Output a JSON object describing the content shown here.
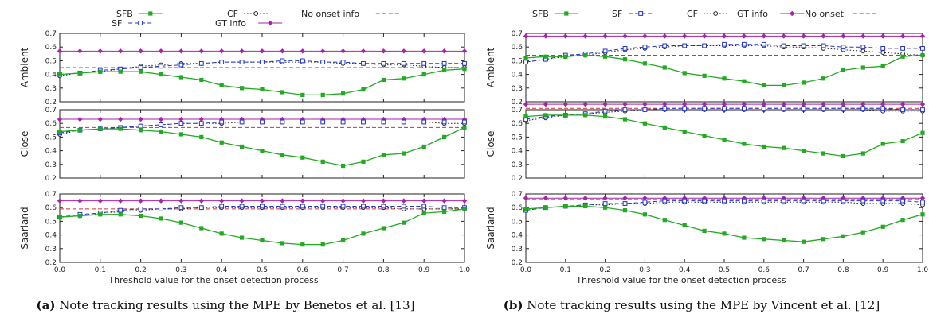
{
  "figures": [
    {
      "caption_label": "(a)",
      "caption_text": " Note tracking results using the MPE by Benetos et al. [13]",
      "xlabel": "Threshold value for the onset detection process",
      "legend": [
        {
          "key": "SFB",
          "label": "SFB"
        },
        {
          "key": "SF",
          "label": "SF"
        },
        {
          "key": "CF",
          "label": "CF"
        },
        {
          "key": "GT",
          "label": "GT info"
        },
        {
          "key": "NO",
          "label": "No onset info"
        }
      ]
    },
    {
      "caption_label": "(b)",
      "caption_text": " Note tracking results using the MPE by Vincent et al. [12]",
      "xlabel": "Threshold value for the onset detection process",
      "legend": [
        {
          "key": "SFB",
          "label": "SFB"
        },
        {
          "key": "SF",
          "label": "SF"
        },
        {
          "key": "CF",
          "label": "CF"
        },
        {
          "key": "GT",
          "label": "GT info"
        },
        {
          "key": "NO",
          "label": "No onset"
        }
      ]
    }
  ],
  "styles": {
    "SFB": {
      "color": "#22aa22",
      "marker": "square-filled",
      "dash": "solid"
    },
    "SF": {
      "color": "#2233cc",
      "marker": "square-open",
      "dash": "dash"
    },
    "CF": {
      "color": "#222222",
      "marker": "circle-open",
      "dash": "dot"
    },
    "GT": {
      "color": "#aa22aa",
      "marker": "diamond-filled",
      "dash": "solid"
    },
    "NO": {
      "color": "#cc3333",
      "marker": "none",
      "dash": "dash"
    }
  },
  "chart_data": [
    {
      "type": "line",
      "panel": "a",
      "ylabel": "Ambient",
      "xlim": [
        0,
        1
      ],
      "ylim": [
        0.2,
        0.7
      ],
      "x": [
        0,
        0.05,
        0.1,
        0.15,
        0.2,
        0.25,
        0.3,
        0.35,
        0.4,
        0.45,
        0.5,
        0.55,
        0.6,
        0.65,
        0.7,
        0.75,
        0.8,
        0.85,
        0.9,
        0.95,
        1.0
      ],
      "series": [
        {
          "name": "SFB",
          "values": [
            0.4,
            0.41,
            0.42,
            0.42,
            0.42,
            0.4,
            0.38,
            0.36,
            0.32,
            0.3,
            0.29,
            0.27,
            0.25,
            0.25,
            0.26,
            0.29,
            0.36,
            0.37,
            0.4,
            0.43,
            0.44
          ]
        },
        {
          "name": "SF",
          "values": [
            0.4,
            0.41,
            0.43,
            0.44,
            0.45,
            0.46,
            0.47,
            0.48,
            0.49,
            0.49,
            0.49,
            0.5,
            0.5,
            0.49,
            0.49,
            0.48,
            0.48,
            0.48,
            0.48,
            0.48,
            0.48
          ]
        },
        {
          "name": "CF",
          "values": [
            0.39,
            0.41,
            0.42,
            0.44,
            0.46,
            0.47,
            0.48,
            0.48,
            0.49,
            0.49,
            0.49,
            0.49,
            0.49,
            0.49,
            0.48,
            0.48,
            0.47,
            0.47,
            0.46,
            0.45,
            0.45
          ]
        },
        {
          "name": "GT info",
          "values": [
            0.57,
            0.57,
            0.57,
            0.57,
            0.57,
            0.57,
            0.57,
            0.57,
            0.57,
            0.57,
            0.57,
            0.57,
            0.57,
            0.57,
            0.57,
            0.57,
            0.57,
            0.57,
            0.57,
            0.57,
            0.57
          ]
        },
        {
          "name": "No onset info",
          "values": [
            0.45,
            0.45,
            0.45,
            0.45,
            0.45,
            0.45,
            0.45,
            0.45,
            0.45,
            0.45,
            0.45,
            0.45,
            0.45,
            0.45,
            0.45,
            0.45,
            0.45,
            0.45,
            0.45,
            0.45,
            0.45
          ]
        }
      ]
    },
    {
      "type": "line",
      "panel": "a",
      "ylabel": "Close",
      "xlim": [
        0,
        1
      ],
      "ylim": [
        0.2,
        0.7
      ],
      "x": [
        0,
        0.05,
        0.1,
        0.15,
        0.2,
        0.25,
        0.3,
        0.35,
        0.4,
        0.45,
        0.5,
        0.55,
        0.6,
        0.65,
        0.7,
        0.75,
        0.8,
        0.85,
        0.9,
        0.95,
        1.0
      ],
      "series": [
        {
          "name": "SFB",
          "values": [
            0.54,
            0.55,
            0.56,
            0.56,
            0.55,
            0.54,
            0.52,
            0.5,
            0.46,
            0.43,
            0.4,
            0.37,
            0.35,
            0.32,
            0.29,
            0.32,
            0.37,
            0.38,
            0.43,
            0.5,
            0.57
          ]
        },
        {
          "name": "SF",
          "values": [
            0.53,
            0.55,
            0.56,
            0.57,
            0.58,
            0.59,
            0.6,
            0.6,
            0.61,
            0.61,
            0.61,
            0.61,
            0.61,
            0.61,
            0.61,
            0.61,
            0.61,
            0.61,
            0.61,
            0.61,
            0.61
          ]
        },
        {
          "name": "CF",
          "values": [
            0.52,
            0.55,
            0.56,
            0.57,
            0.58,
            0.59,
            0.6,
            0.6,
            0.6,
            0.61,
            0.61,
            0.61,
            0.61,
            0.61,
            0.61,
            0.61,
            0.61,
            0.61,
            0.61,
            0.6,
            0.6
          ]
        },
        {
          "name": "GT info",
          "values": [
            0.63,
            0.63,
            0.63,
            0.63,
            0.63,
            0.63,
            0.63,
            0.63,
            0.63,
            0.63,
            0.63,
            0.63,
            0.63,
            0.63,
            0.63,
            0.63,
            0.63,
            0.63,
            0.63,
            0.63,
            0.63
          ]
        },
        {
          "name": "No onset info",
          "values": [
            0.57,
            0.57,
            0.57,
            0.57,
            0.57,
            0.57,
            0.57,
            0.57,
            0.57,
            0.57,
            0.57,
            0.57,
            0.57,
            0.57,
            0.57,
            0.57,
            0.57,
            0.57,
            0.57,
            0.57,
            0.57
          ]
        }
      ]
    },
    {
      "type": "line",
      "panel": "a",
      "ylabel": "Saarland",
      "xlim": [
        0,
        1
      ],
      "ylim": [
        0.2,
        0.7
      ],
      "x": [
        0,
        0.05,
        0.1,
        0.15,
        0.2,
        0.25,
        0.3,
        0.35,
        0.4,
        0.45,
        0.5,
        0.55,
        0.6,
        0.65,
        0.7,
        0.75,
        0.8,
        0.85,
        0.9,
        0.95,
        1.0
      ],
      "series": [
        {
          "name": "SFB",
          "values": [
            0.53,
            0.54,
            0.55,
            0.55,
            0.54,
            0.52,
            0.49,
            0.45,
            0.41,
            0.38,
            0.36,
            0.34,
            0.33,
            0.33,
            0.36,
            0.41,
            0.45,
            0.49,
            0.56,
            0.57,
            0.59
          ]
        },
        {
          "name": "SF",
          "values": [
            0.53,
            0.55,
            0.56,
            0.58,
            0.59,
            0.59,
            0.6,
            0.6,
            0.61,
            0.61,
            0.61,
            0.61,
            0.61,
            0.61,
            0.61,
            0.61,
            0.61,
            0.61,
            0.61,
            0.6,
            0.6
          ]
        },
        {
          "name": "CF",
          "values": [
            0.53,
            0.54,
            0.56,
            0.57,
            0.58,
            0.59,
            0.59,
            0.6,
            0.6,
            0.6,
            0.6,
            0.6,
            0.6,
            0.6,
            0.6,
            0.6,
            0.6,
            0.59,
            0.59,
            0.59,
            0.59
          ]
        },
        {
          "name": "GT info",
          "values": [
            0.65,
            0.65,
            0.65,
            0.65,
            0.65,
            0.65,
            0.65,
            0.65,
            0.65,
            0.65,
            0.65,
            0.65,
            0.65,
            0.65,
            0.65,
            0.65,
            0.65,
            0.65,
            0.65,
            0.65,
            0.65
          ]
        },
        {
          "name": "No onset info",
          "values": [
            0.59,
            0.59,
            0.59,
            0.59,
            0.59,
            0.59,
            0.59,
            0.59,
            0.59,
            0.59,
            0.59,
            0.59,
            0.59,
            0.59,
            0.59,
            0.59,
            0.59,
            0.59,
            0.59,
            0.59,
            0.59
          ]
        }
      ]
    },
    {
      "type": "line",
      "panel": "b",
      "ylabel": "Ambient",
      "xlim": [
        0,
        1
      ],
      "ylim": [
        0.2,
        0.7
      ],
      "x": [
        0,
        0.05,
        0.1,
        0.15,
        0.2,
        0.25,
        0.3,
        0.35,
        0.4,
        0.45,
        0.5,
        0.55,
        0.6,
        0.65,
        0.7,
        0.75,
        0.8,
        0.85,
        0.9,
        0.95,
        1.0
      ],
      "series": [
        {
          "name": "SFB",
          "values": [
            0.52,
            0.53,
            0.53,
            0.54,
            0.53,
            0.51,
            0.48,
            0.45,
            0.41,
            0.39,
            0.37,
            0.35,
            0.32,
            0.32,
            0.34,
            0.37,
            0.43,
            0.45,
            0.46,
            0.53,
            0.54
          ]
        },
        {
          "name": "SF",
          "values": [
            0.49,
            0.51,
            0.54,
            0.55,
            0.57,
            0.59,
            0.6,
            0.61,
            0.61,
            0.61,
            0.62,
            0.62,
            0.62,
            0.61,
            0.61,
            0.61,
            0.6,
            0.6,
            0.59,
            0.59,
            0.59
          ]
        },
        {
          "name": "CF",
          "values": [
            0.49,
            0.51,
            0.53,
            0.54,
            0.56,
            0.58,
            0.59,
            0.6,
            0.61,
            0.61,
            0.61,
            0.61,
            0.61,
            0.6,
            0.6,
            0.59,
            0.58,
            0.57,
            0.56,
            0.55,
            0.54
          ]
        },
        {
          "name": "GT info",
          "values": [
            0.68,
            0.68,
            0.68,
            0.68,
            0.68,
            0.68,
            0.68,
            0.68,
            0.68,
            0.68,
            0.68,
            0.68,
            0.68,
            0.68,
            0.68,
            0.68,
            0.68,
            0.68,
            0.68,
            0.68,
            0.68
          ]
        },
        {
          "name": "No onset",
          "values": [
            0.54,
            0.54,
            0.54,
            0.54,
            0.54,
            0.54,
            0.54,
            0.54,
            0.54,
            0.54,
            0.54,
            0.54,
            0.54,
            0.54,
            0.54,
            0.54,
            0.54,
            0.54,
            0.54,
            0.54,
            0.54
          ]
        }
      ]
    },
    {
      "type": "line",
      "panel": "b",
      "ylabel": "Close",
      "xlim": [
        0,
        1
      ],
      "ylim": [
        0.2,
        0.7
      ],
      "x": [
        0,
        0.05,
        0.1,
        0.15,
        0.2,
        0.25,
        0.3,
        0.35,
        0.4,
        0.45,
        0.5,
        0.55,
        0.6,
        0.65,
        0.7,
        0.75,
        0.8,
        0.85,
        0.9,
        0.95,
        1.0
      ],
      "series": [
        {
          "name": "SFB",
          "values": [
            0.65,
            0.66,
            0.66,
            0.66,
            0.65,
            0.63,
            0.6,
            0.57,
            0.54,
            0.51,
            0.48,
            0.45,
            0.43,
            0.42,
            0.4,
            0.38,
            0.36,
            0.38,
            0.45,
            0.47,
            0.53
          ]
        },
        {
          "name": "SF",
          "values": [
            0.63,
            0.65,
            0.66,
            0.67,
            0.69,
            0.7,
            0.7,
            0.71,
            0.71,
            0.71,
            0.71,
            0.71,
            0.71,
            0.71,
            0.71,
            0.71,
            0.71,
            0.71,
            0.71,
            0.7,
            0.7
          ]
        },
        {
          "name": "CF",
          "values": [
            0.62,
            0.64,
            0.66,
            0.67,
            0.68,
            0.69,
            0.7,
            0.7,
            0.7,
            0.7,
            0.7,
            0.7,
            0.7,
            0.7,
            0.7,
            0.7,
            0.7,
            0.7,
            0.69,
            0.69,
            0.69
          ]
        },
        {
          "name": "GT info",
          "values": [
            0.74,
            0.74,
            0.74,
            0.74,
            0.74,
            0.74,
            0.74,
            0.74,
            0.74,
            0.74,
            0.74,
            0.74,
            0.74,
            0.74,
            0.74,
            0.74,
            0.74,
            0.74,
            0.74,
            0.74,
            0.74
          ]
        },
        {
          "name": "No onset",
          "values": [
            0.71,
            0.71,
            0.71,
            0.71,
            0.71,
            0.71,
            0.71,
            0.71,
            0.71,
            0.71,
            0.71,
            0.71,
            0.71,
            0.71,
            0.71,
            0.71,
            0.71,
            0.71,
            0.71,
            0.71,
            0.71
          ]
        }
      ]
    },
    {
      "type": "line",
      "panel": "b",
      "ylabel": "Saarland",
      "xlim": [
        0,
        1
      ],
      "ylim": [
        0.2,
        0.7
      ],
      "x": [
        0,
        0.05,
        0.1,
        0.15,
        0.2,
        0.25,
        0.3,
        0.35,
        0.4,
        0.45,
        0.5,
        0.55,
        0.6,
        0.65,
        0.7,
        0.75,
        0.8,
        0.85,
        0.9,
        0.95,
        1.0
      ],
      "series": [
        {
          "name": "SFB",
          "values": [
            0.59,
            0.6,
            0.61,
            0.61,
            0.6,
            0.58,
            0.55,
            0.51,
            0.47,
            0.43,
            0.41,
            0.38,
            0.37,
            0.36,
            0.35,
            0.37,
            0.39,
            0.42,
            0.46,
            0.51,
            0.55
          ]
        },
        {
          "name": "SF",
          "values": [
            0.58,
            0.6,
            0.61,
            0.62,
            0.63,
            0.63,
            0.64,
            0.65,
            0.65,
            0.65,
            0.65,
            0.65,
            0.65,
            0.65,
            0.65,
            0.65,
            0.65,
            0.65,
            0.65,
            0.65,
            0.64
          ]
        },
        {
          "name": "CF",
          "values": [
            0.58,
            0.6,
            0.61,
            0.62,
            0.62,
            0.63,
            0.63,
            0.64,
            0.64,
            0.64,
            0.64,
            0.64,
            0.64,
            0.64,
            0.64,
            0.64,
            0.64,
            0.63,
            0.63,
            0.63,
            0.62
          ]
        },
        {
          "name": "GT info",
          "values": [
            0.67,
            0.67,
            0.67,
            0.67,
            0.67,
            0.67,
            0.67,
            0.67,
            0.67,
            0.67,
            0.67,
            0.67,
            0.67,
            0.67,
            0.67,
            0.67,
            0.67,
            0.67,
            0.67,
            0.67,
            0.67
          ]
        },
        {
          "name": "No onset",
          "values": [
            0.66,
            0.66,
            0.66,
            0.66,
            0.66,
            0.66,
            0.66,
            0.66,
            0.66,
            0.66,
            0.66,
            0.66,
            0.66,
            0.66,
            0.66,
            0.66,
            0.66,
            0.66,
            0.66,
            0.66,
            0.66
          ]
        }
      ]
    }
  ]
}
